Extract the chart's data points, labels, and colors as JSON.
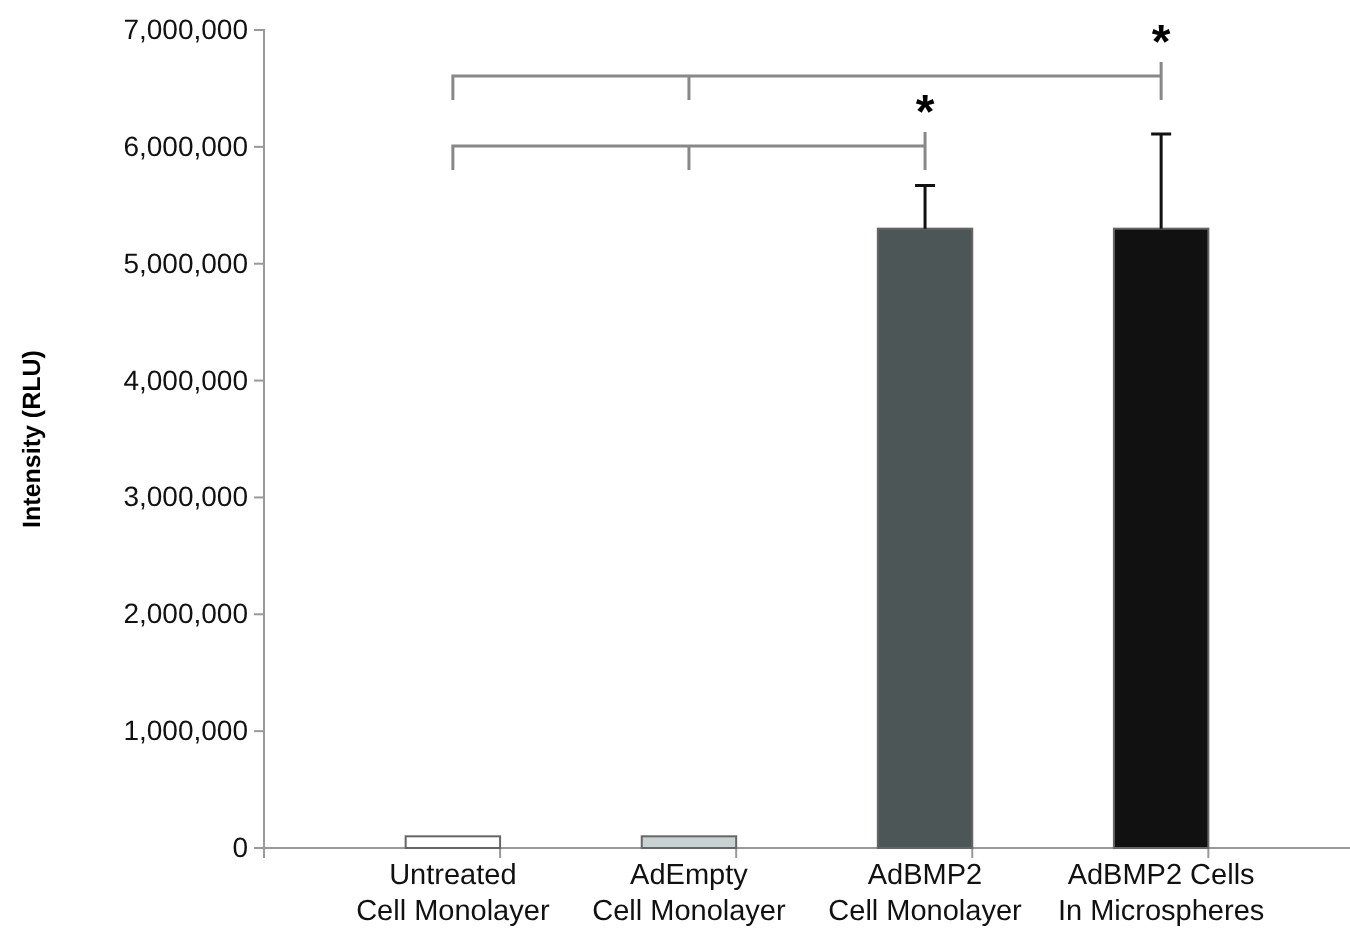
{
  "chart_data": {
    "type": "bar",
    "ylabel": "Intensity (RLU)",
    "categories": [
      "Untreated\nCell Monolayer",
      "AdEmpty\nCell Monolayer",
      "AdBMP2\nCell Monolayer",
      "AdBMP2 Cells\nIn Microspheres"
    ],
    "values": [
      100000,
      100000,
      5300000,
      5300000
    ],
    "colors": [
      "#ffffff",
      "#c9d2d2",
      "#4d5656",
      "#111111"
    ],
    "errors": [
      null,
      null,
      [
        5300000,
        5670000
      ],
      [
        5300000,
        6110000
      ]
    ],
    "ylim": [
      0,
      7000000
    ],
    "yticks": [
      {
        "value": 0,
        "label": "0"
      },
      {
        "value": 1000000,
        "label": "1,000,000"
      },
      {
        "value": 2000000,
        "label": "2,000,000"
      },
      {
        "value": 3000000,
        "label": "3,000,000"
      },
      {
        "value": 4000000,
        "label": "4,000,000"
      },
      {
        "value": 5000000,
        "label": "5,000,000"
      },
      {
        "value": 6000000,
        "label": "6,000,000"
      },
      {
        "value": 7000000,
        "label": "7,000,000"
      }
    ],
    "grid": false,
    "annotations": [
      "*",
      "*"
    ]
  }
}
